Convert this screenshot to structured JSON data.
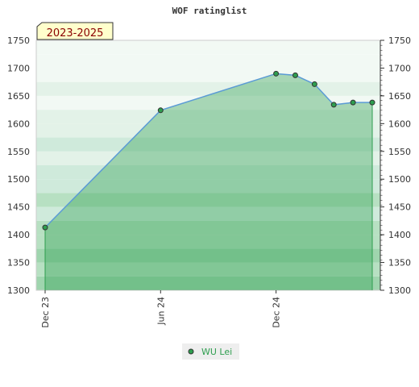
{
  "chart_data": {
    "type": "area",
    "title": "WOF ratinglist",
    "period_label": "2023-2025",
    "x_ticks": [
      "Dec 23",
      "Jun 24",
      "Dec 24"
    ],
    "y_ticks": [
      1300,
      1350,
      1400,
      1450,
      1500,
      1550,
      1600,
      1650,
      1700,
      1750
    ],
    "ylim": [
      1300,
      1750
    ],
    "x_range": [
      "2023-12",
      "2025-05"
    ],
    "series": [
      {
        "name": "WU Lei",
        "color": "#2e9e4f",
        "line_color": "#5b9bd5",
        "points": [
          {
            "x": "2023-12",
            "y": 1413
          },
          {
            "x": "2024-06",
            "y": 1624
          },
          {
            "x": "2024-12",
            "y": 1690
          },
          {
            "x": "2025-01",
            "y": 1687
          },
          {
            "x": "2025-02",
            "y": 1671
          },
          {
            "x": "2025-03",
            "y": 1634
          },
          {
            "x": "2025-04",
            "y": 1638
          },
          {
            "x": "2025-05",
            "y": 1638
          }
        ]
      }
    ],
    "grid": true,
    "legend_position": "bottom"
  }
}
